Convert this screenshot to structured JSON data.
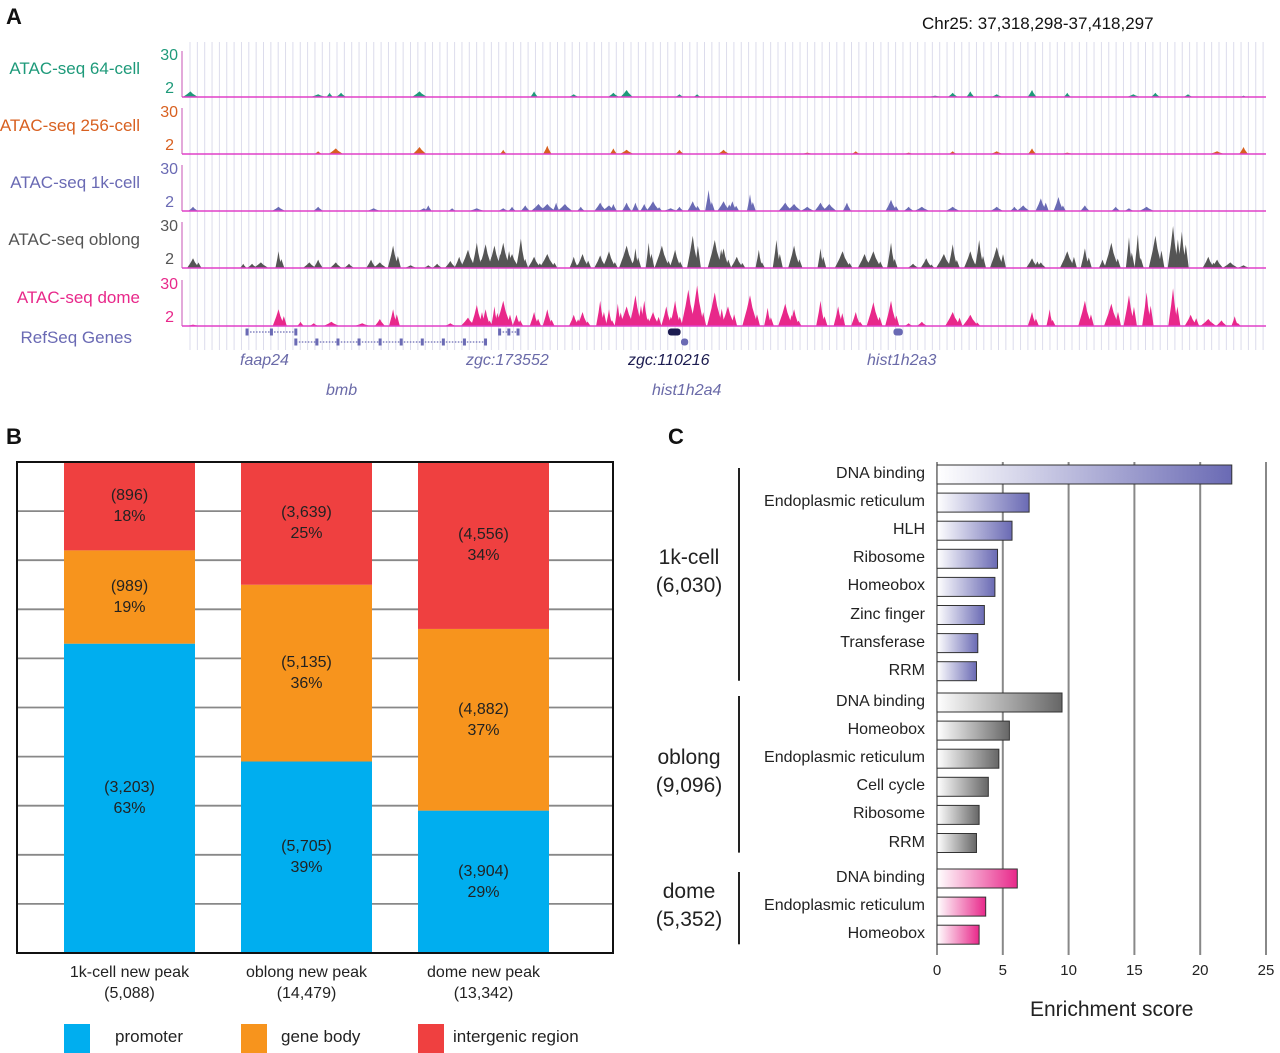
{
  "panel_a": {
    "letter": "A",
    "coordinates": "Chr25: 37,318,298-37,418,297",
    "tick_top": "30",
    "tick_bottom": "2",
    "baseline_color": "#e040c8",
    "tracks": [
      {
        "label": "ATAC-seq 64-cell",
        "color": "#1e9a7a",
        "peaks": [
          [
            0.005,
            4
          ],
          [
            0.15,
            2
          ],
          [
            0.163,
            3
          ],
          [
            0.176,
            3
          ],
          [
            0.265,
            4
          ],
          [
            0.395,
            4
          ],
          [
            0.44,
            2
          ],
          [
            0.485,
            3
          ],
          [
            0.5,
            5
          ],
          [
            0.56,
            2
          ],
          [
            0.58,
            2
          ],
          [
            0.85,
            1
          ],
          [
            0.87,
            3
          ],
          [
            0.89,
            4
          ],
          [
            0.92,
            2
          ],
          [
            0.96,
            5
          ],
          [
            1.0,
            3
          ],
          [
            1.075,
            2
          ],
          [
            1.1,
            3
          ],
          [
            1.137,
            2
          ],
          [
            1.2,
            1
          ],
          [
            1.27,
            4
          ],
          [
            1.3,
            1
          ],
          [
            1.4,
            1
          ],
          [
            1.45,
            2
          ],
          [
            1.5,
            1
          ]
        ]
      },
      {
        "label": "ATAC-seq 256-cell",
        "color": "#d86020",
        "peaks": [
          [
            0.15,
            2
          ],
          [
            0.17,
            4
          ],
          [
            0.265,
            5
          ],
          [
            0.36,
            3
          ],
          [
            0.41,
            6
          ],
          [
            0.485,
            4
          ],
          [
            0.5,
            3
          ],
          [
            0.56,
            3
          ],
          [
            0.61,
            3
          ],
          [
            0.705,
            1
          ],
          [
            0.76,
            2
          ],
          [
            0.82,
            1
          ],
          [
            0.87,
            2
          ],
          [
            0.92,
            2
          ],
          [
            0.96,
            4
          ],
          [
            1.0,
            1
          ],
          [
            1.17,
            2
          ],
          [
            1.2,
            5
          ],
          [
            1.3,
            2
          ],
          [
            1.35,
            2
          ],
          [
            1.42,
            6
          ],
          [
            1.48,
            2
          ],
          [
            1.51,
            5
          ]
        ]
      },
      {
        "label": "ATAC-seq 1k-cell",
        "color": "#6a6ab4",
        "peaks": []
      },
      {
        "label": "ATAC-seq oblong",
        "color": "#555555",
        "peaks": []
      },
      {
        "label": "ATAC-seq dome",
        "color": "#e8288a",
        "peaks": []
      }
    ],
    "refseq_label": "RefSeq Genes",
    "refseq_color": "#6a6ab4",
    "genes": [
      {
        "name": "faap24",
        "row": 1,
        "start": 0.06,
        "end": 0.105,
        "dark": false
      },
      {
        "name": "bmb",
        "row": 2,
        "start": 0.105,
        "end": 0.28,
        "dark": false
      },
      {
        "name": "zgc:173552",
        "row": 1,
        "start": 0.293,
        "end": 0.31,
        "dark": false
      },
      {
        "name": "zgc:110216",
        "row": 1,
        "start": 0.452,
        "end": 0.46,
        "dark": true
      },
      {
        "name": "hist1h2a4",
        "row": 2,
        "start": 0.464,
        "end": 0.467,
        "dark": false
      },
      {
        "name": "hist1h2a3",
        "row": 1,
        "start": 0.66,
        "end": 0.665,
        "dark": false
      }
    ]
  },
  "chart_data": [
    {
      "type": "bar",
      "title": "B",
      "stacked": true,
      "orientation": "vertical",
      "categories": [
        "1k-cell new peak",
        "oblong new peak",
        "dome new peak"
      ],
      "category_totals": [
        "(5,088)",
        "(14,479)",
        "(13,342)"
      ],
      "series": [
        {
          "name": "promoter",
          "color": "#00aeef",
          "counts": [
            3203,
            5705,
            3904
          ],
          "count_labels": [
            "(3,203)",
            "(5,705)",
            "(3,904)"
          ],
          "values": [
            63,
            39,
            29
          ],
          "labels": [
            "63%",
            "39%",
            "29%"
          ]
        },
        {
          "name": "gene body",
          "color": "#f7941d",
          "counts": [
            989,
            5135,
            4882
          ],
          "count_labels": [
            "(989)",
            "(5,135)",
            "(4,882)"
          ],
          "values": [
            19,
            36,
            37
          ],
          "labels": [
            "19%",
            "36%",
            "37%"
          ]
        },
        {
          "name": "intergenic region",
          "color": "#ef4040",
          "counts": [
            896,
            3639,
            4556
          ],
          "count_labels": [
            "(896)",
            "(3,639)",
            "(4,556)"
          ],
          "values": [
            18,
            25,
            34
          ],
          "labels": [
            "18%",
            "25%",
            "34%"
          ]
        }
      ],
      "ylim": [
        0,
        100
      ],
      "grid": true,
      "legend": "bottom"
    },
    {
      "type": "bar",
      "title": "C",
      "orientation": "horizontal",
      "xlabel": "Enrichment score",
      "xlim": [
        0,
        25
      ],
      "xticks": [
        "0",
        "5",
        "10",
        "15",
        "20",
        "25"
      ],
      "grid": true,
      "groups": [
        {
          "name": "1k-cell",
          "count": "(6,030)",
          "color": "#6a6ab4",
          "categories": [
            "DNA binding",
            "Endoplasmic reticulum",
            "HLH",
            "Ribosome",
            "Homeobox",
            "Zinc finger",
            "Transferase",
            "RRM"
          ],
          "values": [
            22.4,
            7.0,
            5.7,
            4.6,
            4.4,
            3.6,
            3.1,
            3.0
          ]
        },
        {
          "name": "oblong",
          "count": "(9,096)",
          "color": "#666666",
          "categories": [
            "DNA binding",
            "Homeobox",
            "Endoplasmic reticulum",
            "Cell cycle",
            "Ribosome",
            "RRM"
          ],
          "values": [
            9.5,
            5.5,
            4.7,
            3.9,
            3.2,
            3.0
          ]
        },
        {
          "name": "dome",
          "count": "(5,352)",
          "color": "#e8288a",
          "categories": [
            "DNA binding",
            "Endoplasmic reticulum",
            "Homeobox"
          ],
          "values": [
            6.1,
            3.7,
            3.2
          ]
        }
      ]
    }
  ],
  "panel_b": {
    "letter": "B"
  },
  "panel_c": {
    "letter": "C"
  }
}
